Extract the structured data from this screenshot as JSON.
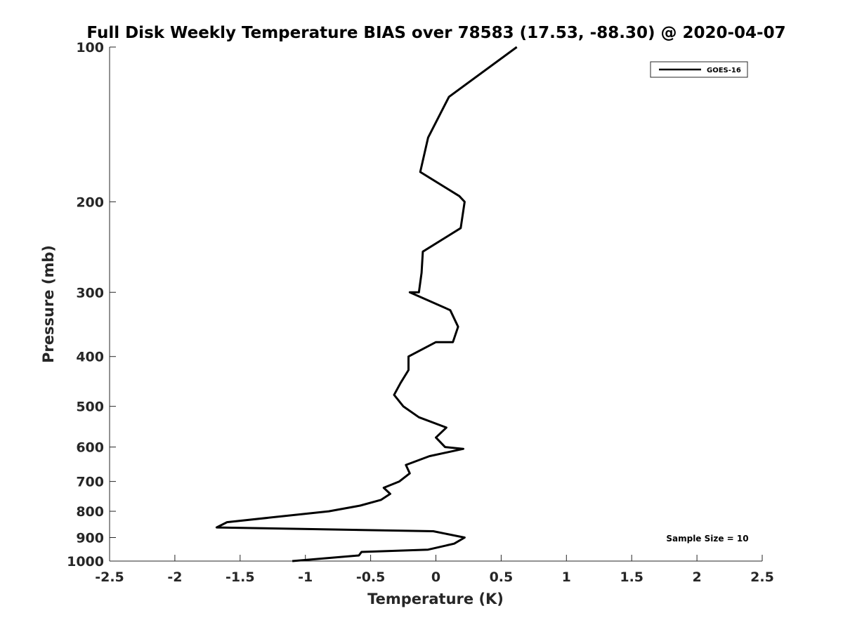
{
  "chart_data": {
    "type": "line",
    "title": "Full Disk Weekly Temperature BIAS over 78583 (17.53, -88.30) @ 2020-04-07",
    "xlabel": "Temperature (K)",
    "ylabel": "Pressure (mb)",
    "xlim": [
      -2.5,
      2.5
    ],
    "ylim": [
      100,
      1000
    ],
    "yscale": "log",
    "y_reversed": true,
    "xticks": [
      -2.5,
      -2,
      -1.5,
      -1,
      -0.5,
      0,
      0.5,
      1,
      1.5,
      2,
      2.5
    ],
    "xtick_labels": [
      "-2.5",
      "-2",
      "-1.5",
      "-1",
      "-0.5",
      "0",
      "0.5",
      "1",
      "1.5",
      "2",
      "2.5"
    ],
    "yticks": [
      100,
      200,
      300,
      400,
      500,
      600,
      700,
      800,
      900,
      1000
    ],
    "ytick_labels": [
      "100",
      "200",
      "300",
      "400",
      "500",
      "600",
      "700",
      "800",
      "900",
      "1000"
    ],
    "grid": false,
    "legend_position": "top-right",
    "series": [
      {
        "name": "GOES-16",
        "color": "#000000",
        "points": [
          {
            "x": 0.62,
            "y": 100
          },
          {
            "x": 0.1,
            "y": 125
          },
          {
            "x": -0.06,
            "y": 150
          },
          {
            "x": -0.12,
            "y": 175
          },
          {
            "x": 0.18,
            "y": 195
          },
          {
            "x": 0.22,
            "y": 200
          },
          {
            "x": 0.19,
            "y": 225
          },
          {
            "x": -0.1,
            "y": 250
          },
          {
            "x": -0.11,
            "y": 275
          },
          {
            "x": -0.13,
            "y": 300
          },
          {
            "x": -0.2,
            "y": 300
          },
          {
            "x": 0.11,
            "y": 325
          },
          {
            "x": 0.17,
            "y": 350
          },
          {
            "x": 0.13,
            "y": 375
          },
          {
            "x": 0.0,
            "y": 375
          },
          {
            "x": -0.21,
            "y": 400
          },
          {
            "x": -0.21,
            "y": 425
          },
          {
            "x": -0.27,
            "y": 450
          },
          {
            "x": -0.32,
            "y": 475
          },
          {
            "x": -0.25,
            "y": 500
          },
          {
            "x": -0.13,
            "y": 525
          },
          {
            "x": 0.08,
            "y": 550
          },
          {
            "x": 0.0,
            "y": 575
          },
          {
            "x": 0.07,
            "y": 600
          },
          {
            "x": 0.21,
            "y": 605
          },
          {
            "x": -0.05,
            "y": 625
          },
          {
            "x": -0.23,
            "y": 650
          },
          {
            "x": -0.2,
            "y": 675
          },
          {
            "x": -0.28,
            "y": 700
          },
          {
            "x": -0.4,
            "y": 720
          },
          {
            "x": -0.35,
            "y": 740
          },
          {
            "x": -0.42,
            "y": 760
          },
          {
            "x": -0.58,
            "y": 780
          },
          {
            "x": -0.82,
            "y": 800
          },
          {
            "x": -1.6,
            "y": 840
          },
          {
            "x": -1.68,
            "y": 860
          },
          {
            "x": -0.02,
            "y": 875
          },
          {
            "x": 0.22,
            "y": 900
          },
          {
            "x": 0.14,
            "y": 925
          },
          {
            "x": -0.06,
            "y": 950
          },
          {
            "x": -0.57,
            "y": 960
          },
          {
            "x": -0.59,
            "y": 975
          },
          {
            "x": -1.1,
            "y": 1000
          }
        ]
      }
    ],
    "annotations": [
      "Sample Size = 10"
    ]
  }
}
